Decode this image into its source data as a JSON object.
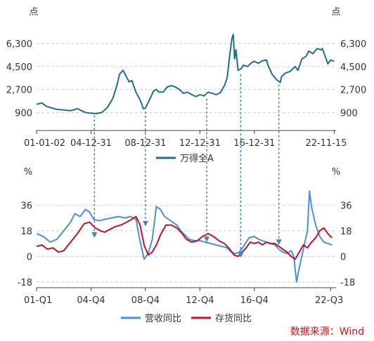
{
  "source": "数据来源：Wind",
  "chart_data": [
    {
      "type": "line",
      "title": "",
      "ylabel_left": "点",
      "ylabel_right": "点",
      "ylim": [
        -500,
        7500
      ],
      "y_ticks": [
        "900",
        "2,700",
        "4,500",
        "6,300"
      ],
      "y_tick_values": [
        900,
        2700,
        4500,
        6300
      ],
      "x_tick_labels": [
        "01-01-02",
        "04-12-31",
        "08-12-31",
        "12-12-31",
        "16-12-31",
        "22-11-15"
      ],
      "x_tick_values": [
        2001.0,
        2005.0,
        2009.0,
        2013.0,
        2017.0,
        2022.87
      ],
      "x_range": [
        2001.0,
        2023.0
      ],
      "grid": "horizontal dashed",
      "legend": "bottom-center",
      "series": [
        {
          "name": "万得全A",
          "color": "#1f6e8c",
          "x": [
            2001.0,
            2001.4,
            2001.7,
            2002.0,
            2002.5,
            2003.0,
            2003.5,
            2004.0,
            2004.3,
            2004.6,
            2005.0,
            2005.4,
            2005.8,
            2006.2,
            2006.6,
            2006.9,
            2007.1,
            2007.35,
            2007.6,
            2007.8,
            2008.0,
            2008.3,
            2008.6,
            2008.85,
            2009.0,
            2009.3,
            2009.6,
            2009.8,
            2010.0,
            2010.3,
            2010.6,
            2010.9,
            2011.2,
            2011.5,
            2011.8,
            2012.1,
            2012.4,
            2012.7,
            2013.0,
            2013.3,
            2013.6,
            2013.9,
            2014.2,
            2014.5,
            2014.8,
            2015.0,
            2015.2,
            2015.35,
            2015.45,
            2015.55,
            2015.65,
            2015.8,
            2016.0,
            2016.2,
            2016.5,
            2016.8,
            2017.0,
            2017.3,
            2017.6,
            2017.9,
            2018.0,
            2018.3,
            2018.6,
            2018.9,
            2019.0,
            2019.3,
            2019.6,
            2019.9,
            2020.0,
            2020.2,
            2020.5,
            2020.8,
            2021.0,
            2021.3,
            2021.6,
            2021.9,
            2022.0,
            2022.2,
            2022.4,
            2022.6,
            2022.87
          ],
          "y": [
            1550,
            1650,
            1400,
            1300,
            1150,
            1100,
            1050,
            1200,
            1050,
            900,
            850,
            820,
            900,
            1300,
            2000,
            3000,
            3900,
            4200,
            3700,
            3300,
            3400,
            2500,
            1900,
            1200,
            1250,
            1900,
            2600,
            2700,
            2500,
            2500,
            2900,
            3000,
            2900,
            2700,
            2400,
            2500,
            2300,
            2150,
            2300,
            2200,
            2500,
            2400,
            2300,
            2450,
            3000,
            3600,
            5500,
            6700,
            7000,
            5100,
            5800,
            4200,
            4300,
            4600,
            4500,
            4800,
            4900,
            4750,
            4950,
            5000,
            4600,
            3900,
            3500,
            3250,
            3700,
            4000,
            4100,
            4400,
            4500,
            4200,
            5100,
            5300,
            5700,
            5500,
            5900,
            5800,
            5900,
            5300,
            4700,
            5000,
            4900
          ]
        }
      ]
    },
    {
      "type": "line",
      "title": "",
      "ylabel_left": "%",
      "ylabel_right": "%",
      "ylim": [
        -22,
        48
      ],
      "y_ticks": [
        "-18",
        "0",
        "18",
        "36"
      ],
      "y_tick_values": [
        -18,
        0,
        18,
        36
      ],
      "x_tick_labels": [
        "01-Q1",
        "04-Q4",
        "08-Q4",
        "12-Q4",
        "16-Q4",
        "22-Q3"
      ],
      "x_tick_values": [
        2001.0,
        2005.0,
        2009.0,
        2013.0,
        2017.0,
        2022.6
      ],
      "x_range": [
        2001.0,
        2023.0
      ],
      "grid": "horizontal dashed",
      "legend": "bottom-center",
      "series": [
        {
          "name": "营收同比",
          "color": "#4a90d9",
          "x": [
            2001.0,
            2001.5,
            2002.0,
            2002.5,
            2003.0,
            2003.5,
            2003.8,
            2004.2,
            2004.6,
            2004.9,
            2005.2,
            2005.6,
            2006.0,
            2006.5,
            2007.0,
            2007.5,
            2007.9,
            2008.3,
            2008.6,
            2008.9,
            2009.2,
            2009.5,
            2009.8,
            2010.1,
            2010.4,
            2010.7,
            2011.0,
            2011.3,
            2011.6,
            2011.9,
            2012.2,
            2012.6,
            2013.0,
            2013.4,
            2013.8,
            2014.2,
            2014.6,
            2015.0,
            2015.3,
            2015.6,
            2015.9,
            2016.2,
            2016.6,
            2017.0,
            2017.3,
            2017.6,
            2017.9,
            2018.2,
            2018.5,
            2018.8,
            2019.1,
            2019.4,
            2019.7,
            2019.9,
            2020.1,
            2020.3,
            2020.6,
            2020.9,
            2021.05,
            2021.2,
            2021.5,
            2021.8,
            2022.1,
            2022.4,
            2022.7
          ],
          "y": [
            16,
            14,
            10,
            12,
            18,
            24,
            30,
            28,
            33,
            31,
            26,
            25,
            26,
            27,
            28,
            27,
            28,
            26,
            11,
            -2,
            2,
            12,
            35,
            33,
            28,
            26,
            24,
            22,
            18,
            15,
            12,
            11,
            11,
            10,
            9,
            8,
            7,
            6,
            3,
            2,
            3,
            7,
            13,
            14,
            12,
            11,
            10,
            9,
            8,
            5,
            3,
            2,
            4,
            0,
            -18,
            -8,
            5,
            18,
            46,
            35,
            22,
            14,
            10,
            9,
            8
          ]
        },
        {
          "name": "存货同比",
          "color": "#c0102a",
          "x": [
            2001.0,
            2001.4,
            2001.8,
            2002.2,
            2002.6,
            2003.0,
            2003.5,
            2004.0,
            2004.5,
            2004.9,
            2005.3,
            2005.7,
            2006.0,
            2006.4,
            2006.8,
            2007.2,
            2007.6,
            2008.0,
            2008.3,
            2008.6,
            2008.9,
            2009.2,
            2009.5,
            2009.8,
            2010.1,
            2010.5,
            2010.9,
            2011.3,
            2011.7,
            2012.0,
            2012.4,
            2012.8,
            2013.2,
            2013.6,
            2014.0,
            2014.4,
            2014.8,
            2015.2,
            2015.5,
            2015.8,
            2016.1,
            2016.4,
            2016.7,
            2017.0,
            2017.3,
            2017.6,
            2017.9,
            2018.2,
            2018.5,
            2018.8,
            2019.1,
            2019.4,
            2019.7,
            2020.0,
            2020.3,
            2020.6,
            2020.9,
            2021.2,
            2021.5,
            2021.8,
            2022.1,
            2022.4,
            2022.7
          ],
          "y": [
            7,
            8,
            5,
            6,
            3,
            4,
            10,
            16,
            23,
            24,
            20,
            18,
            17,
            19,
            21,
            22,
            24,
            26,
            28,
            22,
            8,
            1,
            3,
            8,
            15,
            22,
            22,
            20,
            16,
            12,
            10,
            11,
            14,
            16,
            14,
            11,
            9,
            5,
            1,
            0,
            3,
            6,
            10,
            9,
            10,
            8,
            10,
            9,
            9,
            7,
            5,
            3,
            0,
            -2,
            3,
            8,
            6,
            10,
            13,
            18,
            20,
            16,
            13
          ]
        }
      ]
    }
  ]
}
